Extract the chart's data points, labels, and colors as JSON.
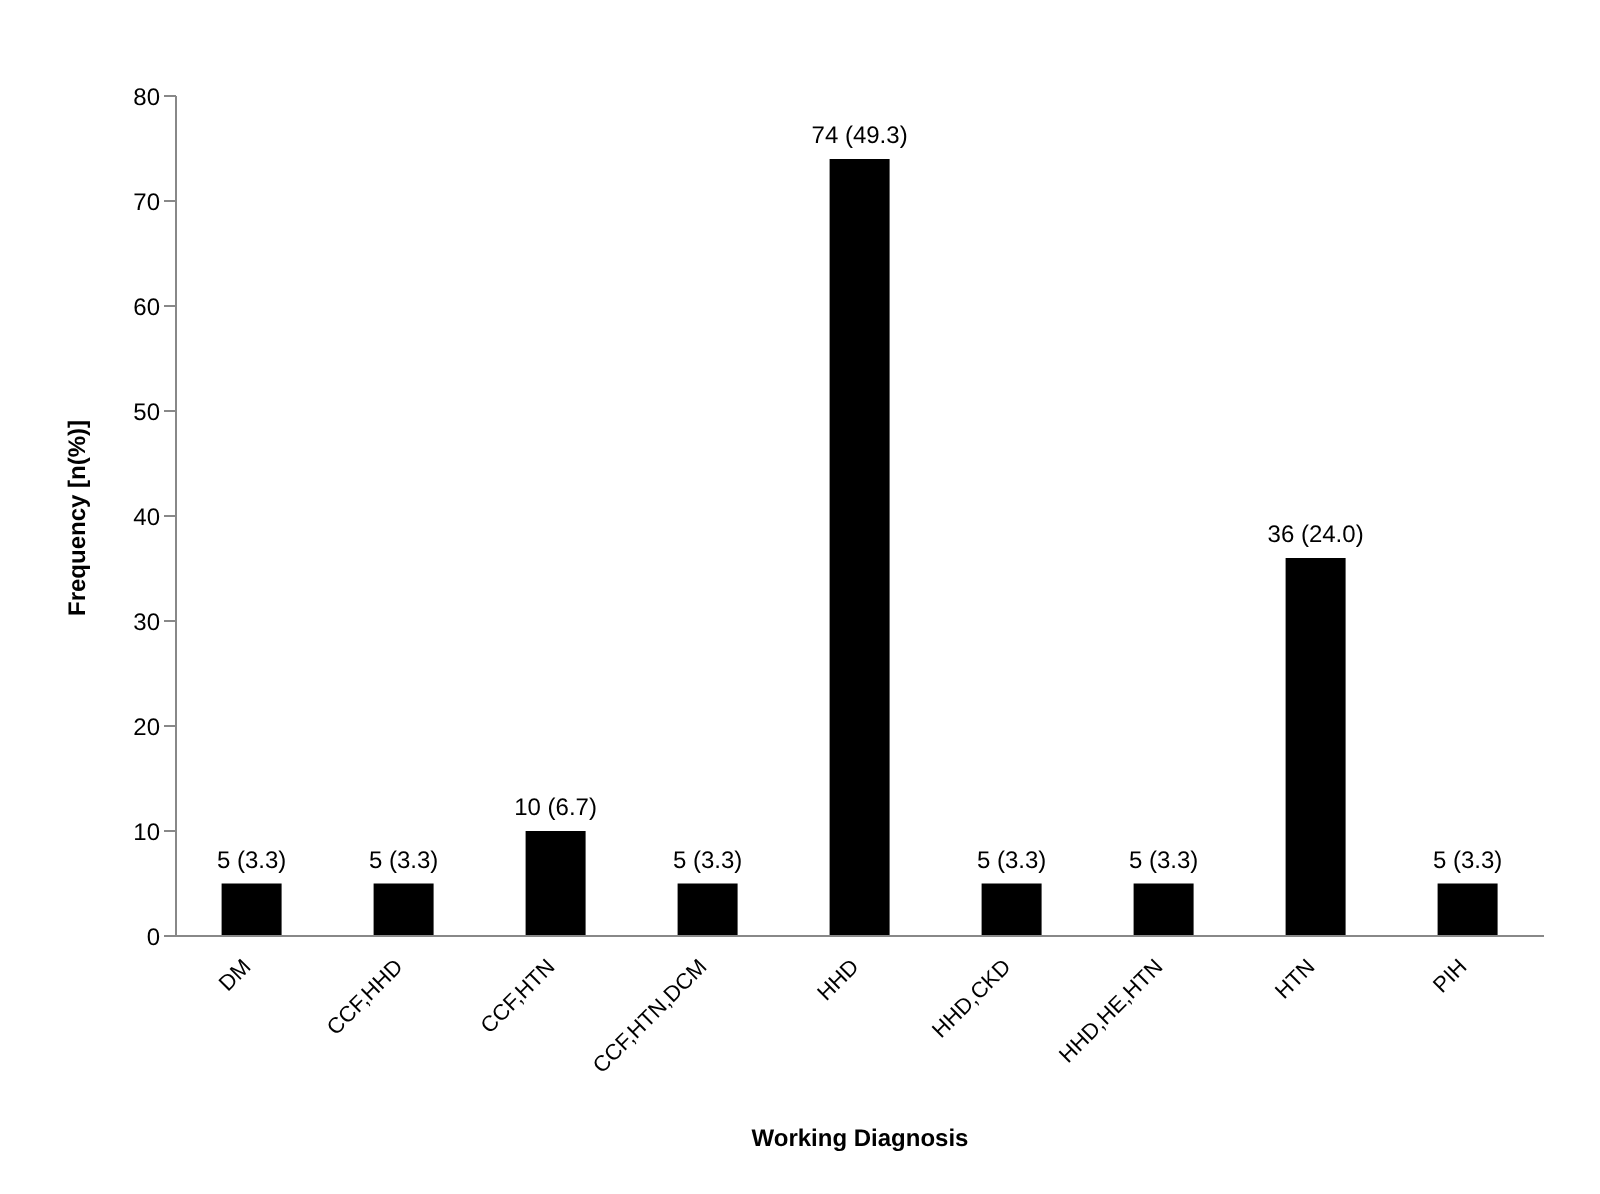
{
  "chart_data": {
    "type": "bar",
    "xlabel": "Working Diagnosis",
    "ylabel": "Frequency [n(%)]",
    "categories": [
      "DM",
      "CCF,HHD",
      "CCF,HTN",
      "CCF,HTN,DCM",
      "HHD",
      "HHD,CKD",
      "HHD,HE,HTN",
      "HTN",
      "PIH"
    ],
    "values": [
      5,
      5,
      10,
      5,
      74,
      5,
      5,
      36,
      5
    ],
    "value_labels": [
      "5 (3.3)",
      "5 (3.3)",
      "10 (6.7)",
      "5 (3.3)",
      "74 (49.3)",
      "5 (3.3)",
      "5 (3.3)",
      "36 (24.0)",
      "5 (3.3)"
    ],
    "color": "#000000",
    "ylim": [
      0,
      80
    ],
    "yticks": [
      0,
      10,
      20,
      30,
      40,
      50,
      60,
      70,
      80
    ],
    "grid": false,
    "legend": false
  }
}
